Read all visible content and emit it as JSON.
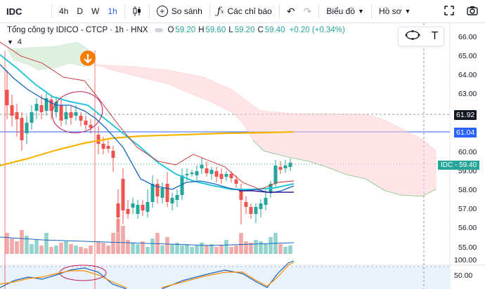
{
  "toolbar": {
    "symbol": "IDC",
    "intervals": [
      "4h",
      "D",
      "W",
      "1h"
    ],
    "active_interval": "1h",
    "compare_label": "So sánh",
    "indicators_label": "Các chỉ báo",
    "chart_label": "Biểu đồ",
    "profile_label": "Hồ sơ"
  },
  "legend": {
    "title": "Tổng công ty IDICO - CTCP · 1h · HNX",
    "o_label": "O",
    "o_value": "59.20",
    "h_label": "H",
    "h_value": "59.60",
    "l_label": "L",
    "l_value": "59.20",
    "c_label": "C",
    "c_value": "59.40",
    "change": "+0.20 (+0.34%)",
    "indicator_count": "4"
  },
  "price_axis": [
    "66.00",
    "65.00",
    "64.00",
    "63.00",
    "62.00",
    "61.92",
    "61.04",
    "60.00",
    "59.00",
    "58.00",
    "57.00",
    "56.00",
    "55.00"
  ],
  "price_tags": {
    "tag1": "61.92",
    "tag2": "61.04",
    "symbol_tag": "IDC",
    "symbol_price": "59.40"
  },
  "osc_axis": [
    "100.00",
    "50.00"
  ],
  "colors": {
    "up": "#26a69a",
    "down": "#ef5350",
    "accent": "#2962ff",
    "ma_yellow": "#f7b500",
    "ma_cyan": "#26c6da",
    "ma_blue": "#1565c0"
  },
  "icons": [
    "plus-circle-icon",
    "fx-icon",
    "undo-icon",
    "redo-icon",
    "chevron-down-icon",
    "fullscreen-icon",
    "camera-icon",
    "ellipse-icon",
    "text-tool-icon",
    "arrow-down-marker-icon"
  ]
}
